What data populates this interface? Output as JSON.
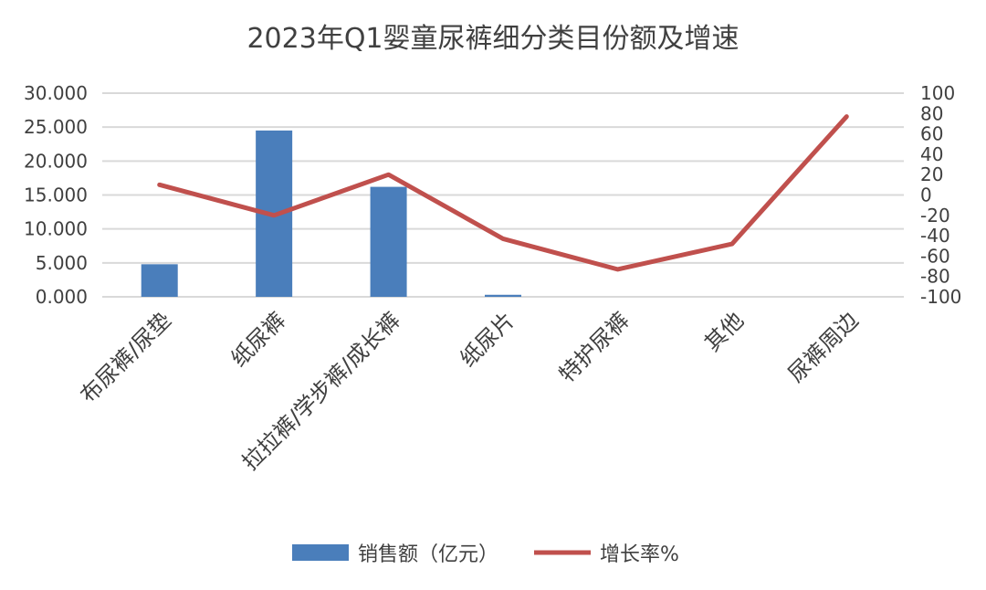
{
  "chart_data": {
    "type": "bar+line",
    "title": "2023年Q1婴童尿裤细分类目份额及增速",
    "categories": [
      "布尿裤/尿垫",
      "纸尿裤",
      "拉拉裤/学步裤/成长裤",
      "纸尿片",
      "特护尿裤",
      "其他",
      "尿裤周边"
    ],
    "series": [
      {
        "name": "销售额（亿元）",
        "type": "bar",
        "axis": "left",
        "color": "#4a7ebb",
        "values": [
          4.8,
          24.5,
          16.2,
          0.3,
          0.0,
          0.0,
          0.0
        ]
      },
      {
        "name": "增长率%",
        "type": "line",
        "axis": "right",
        "color": "#c0504d",
        "values": [
          10,
          -20,
          20,
          -43,
          -73,
          -48,
          77
        ]
      }
    ],
    "y_left": {
      "min": 0,
      "max": 30,
      "step": 5,
      "tick_labels": [
        "0.000",
        "5.000",
        "10.000",
        "15.000",
        "20.000",
        "25.000",
        "30.000"
      ]
    },
    "y_right": {
      "min": -100,
      "max": 100,
      "step": 20,
      "tick_labels": [
        "-100",
        "-80",
        "-60",
        "-40",
        "-20",
        "0",
        "20",
        "40",
        "60",
        "80",
        "100"
      ]
    },
    "grid": true,
    "legend_position": "bottom"
  }
}
